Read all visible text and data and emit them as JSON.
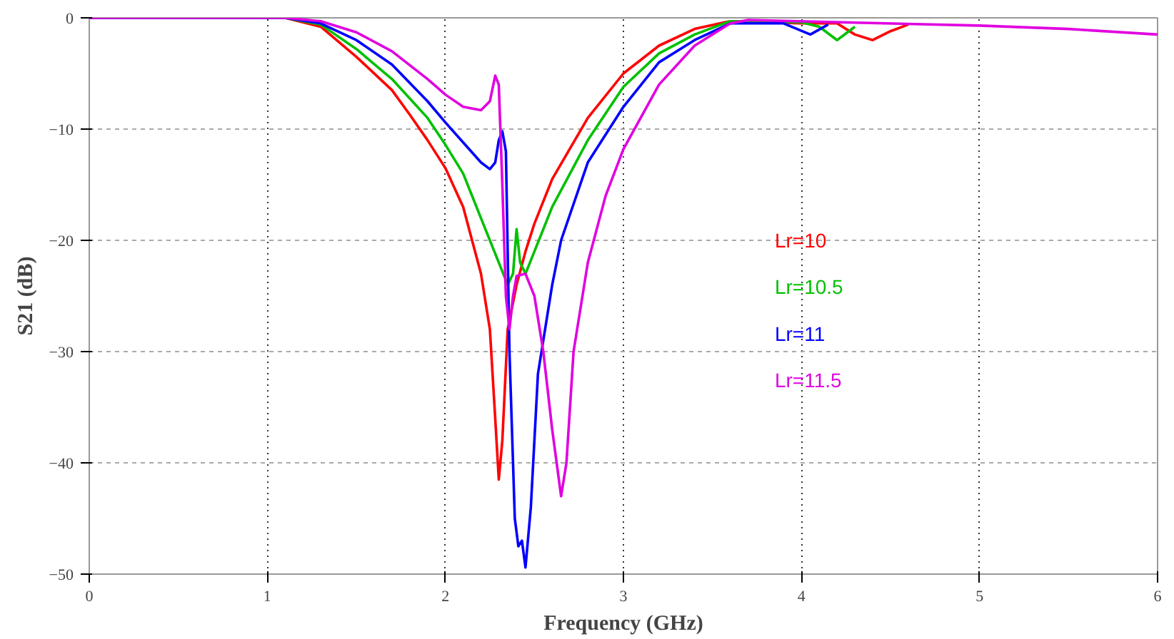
{
  "chart_data": {
    "type": "line",
    "xlabel": "Frequency (GHz)",
    "ylabel": "S21 (dB)",
    "xlim": [
      0,
      6
    ],
    "ylim": [
      -50,
      0
    ],
    "xticks": [
      0,
      1,
      2,
      3,
      4,
      5,
      6
    ],
    "yticks": [
      -50,
      -40,
      -30,
      -20,
      -10,
      0
    ],
    "grid": true,
    "line_style": "solid",
    "series": [
      {
        "name": "Lr=10",
        "color": "#ff0000",
        "x": [
          0,
          1.0,
          1.1,
          1.3,
          1.5,
          1.7,
          1.8,
          1.9,
          2.0,
          2.1,
          2.2,
          2.25,
          2.28,
          2.3,
          2.32,
          2.35,
          2.4,
          2.45,
          2.5,
          2.6,
          2.8,
          3.0,
          3.2,
          3.4,
          3.6,
          4.0,
          4.2,
          4.3,
          4.4,
          4.5,
          4.6
        ],
        "values": [
          0,
          0,
          0,
          -0.8,
          -3.5,
          -6.5,
          -8.7,
          -11,
          -13.5,
          -17,
          -23,
          -28,
          -36,
          -41.5,
          -38,
          -28,
          -24,
          -21,
          -18.5,
          -14.5,
          -9,
          -5,
          -2.5,
          -1,
          -0.3,
          -0.5,
          -0.5,
          -1.5,
          -2,
          -1.2,
          -0.6
        ]
      },
      {
        "name": "Lr=10.5",
        "color": "#00c000",
        "x": [
          0,
          1.0,
          1.1,
          1.3,
          1.5,
          1.7,
          1.9,
          2.0,
          2.1,
          2.2,
          2.3,
          2.35,
          2.38,
          2.4,
          2.42,
          2.45,
          2.5,
          2.6,
          2.8,
          3.0,
          3.2,
          3.4,
          3.6,
          4.0,
          4.1,
          4.2,
          4.3
        ],
        "values": [
          0,
          0,
          0,
          -0.6,
          -2.8,
          -5.5,
          -9,
          -11.4,
          -14,
          -18,
          -22,
          -24,
          -23,
          -19,
          -22,
          -23,
          -21,
          -17,
          -11,
          -6.2,
          -3.2,
          -1.5,
          -0.3,
          -0.4,
          -0.8,
          -2,
          -0.8
        ]
      },
      {
        "name": "Lr=11",
        "color": "#0000ff",
        "x": [
          0,
          1.0,
          1.1,
          1.3,
          1.5,
          1.7,
          1.9,
          2.0,
          2.1,
          2.2,
          2.25,
          2.28,
          2.3,
          2.32,
          2.34,
          2.36,
          2.39,
          2.41,
          2.43,
          2.45,
          2.48,
          2.52,
          2.6,
          2.65,
          2.8,
          3.0,
          3.2,
          3.4,
          3.6,
          3.9,
          4.05,
          4.15
        ],
        "values": [
          0,
          0,
          0,
          -0.5,
          -2,
          -4.2,
          -7.5,
          -9.4,
          -11.2,
          -13,
          -13.6,
          -13,
          -11,
          -10.2,
          -12,
          -30,
          -45,
          -47.5,
          -47,
          -49.4,
          -44,
          -32,
          -24,
          -20,
          -13,
          -8,
          -4,
          -2,
          -0.5,
          -0.5,
          -1.5,
          -0.6
        ]
      },
      {
        "name": "Lr=11.5",
        "color": "#e000e0",
        "x": [
          0,
          1.0,
          1.1,
          1.3,
          1.5,
          1.7,
          1.9,
          2.0,
          2.1,
          2.2,
          2.25,
          2.28,
          2.3,
          2.32,
          2.34,
          2.36,
          2.38,
          2.4,
          2.45,
          2.5,
          2.55,
          2.6,
          2.65,
          2.68,
          2.72,
          2.8,
          2.9,
          3.0,
          3.2,
          3.4,
          3.6,
          3.7,
          5.0,
          5.5,
          6.0
        ],
        "values": [
          0,
          0,
          0,
          -0.3,
          -1.3,
          -3,
          -5.5,
          -6.9,
          -8,
          -8.3,
          -7.5,
          -5.2,
          -6,
          -15,
          -25,
          -28,
          -25,
          -23.2,
          -23,
          -25,
          -30,
          -37,
          -43,
          -40,
          -30,
          -22,
          -16,
          -11.8,
          -6,
          -2.5,
          -0.5,
          -0.2,
          -0.7,
          -1,
          -1.5
        ]
      }
    ]
  }
}
